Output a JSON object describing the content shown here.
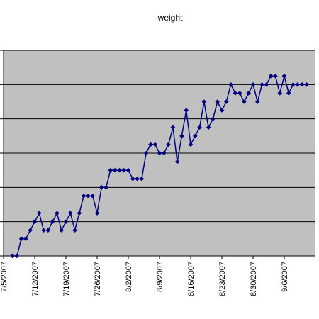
{
  "chart_data": {
    "type": "line",
    "title": "weight",
    "xlabel": "",
    "ylabel": "",
    "x_ticks": [
      "7/5/2007",
      "7/12/2007",
      "7/19/2007",
      "7/26/2007",
      "8/2/2007",
      "8/9/2007",
      "8/16/2007",
      "8/23/2007",
      "8/30/2007",
      "9/6/2007"
    ],
    "x_range": [
      "7/5/2007",
      "9/13/2007"
    ],
    "grid": true,
    "legend": "none",
    "y_gridline_count": 6,
    "colors": {
      "plot_bg": "#c0c0c0",
      "series": "#000080",
      "gridline": "#000000"
    },
    "series": [
      {
        "x": [
          "7/7/2007",
          "7/8/2007",
          "7/9/2007",
          "7/10/2007",
          "7/11/2007",
          "7/12/2007",
          "7/13/2007",
          "7/14/2007",
          "7/15/2007",
          "7/16/2007",
          "7/17/2007",
          "7/18/2007",
          "7/19/2007",
          "7/20/2007",
          "7/21/2007",
          "7/22/2007",
          "7/23/2007",
          "7/24/2007",
          "7/25/2007",
          "7/26/2007",
          "7/27/2007",
          "7/28/2007",
          "7/29/2007",
          "7/30/2007",
          "7/31/2007",
          "8/1/2007",
          "8/2/2007",
          "8/3/2007",
          "8/4/2007",
          "8/5/2007",
          "8/6/2007",
          "8/7/2007",
          "8/8/2007",
          "8/9/2007",
          "8/10/2007",
          "8/11/2007",
          "8/12/2007",
          "8/13/2007",
          "8/14/2007",
          "8/15/2007",
          "8/16/2007",
          "8/17/2007",
          "8/18/2007",
          "8/19/2007",
          "8/20/2007",
          "8/21/2007",
          "8/22/2007",
          "8/23/2007",
          "8/24/2007",
          "8/25/2007",
          "8/26/2007",
          "8/27/2007",
          "8/28/2007",
          "8/29/2007",
          "8/30/2007",
          "8/31/2007",
          "9/1/2007",
          "9/2/2007",
          "9/3/2007",
          "9/4/2007",
          "9/5/2007",
          "9/6/2007",
          "9/7/2007",
          "9/8/2007",
          "9/9/2007",
          "9/10/2007",
          "9/11/2007"
        ],
        "y": [
          0.0,
          0.0,
          0.5,
          0.5,
          0.75,
          1.0,
          1.25,
          0.75,
          0.75,
          1.0,
          1.25,
          0.75,
          1.0,
          1.25,
          0.75,
          1.25,
          1.75,
          1.75,
          1.75,
          1.25,
          2.0,
          2.0,
          2.5,
          2.5,
          2.5,
          2.5,
          2.5,
          2.25,
          2.25,
          2.25,
          3.0,
          3.25,
          3.25,
          3.0,
          3.0,
          3.25,
          3.75,
          2.75,
          3.5,
          4.25,
          3.25,
          3.5,
          3.75,
          4.5,
          3.75,
          4.0,
          4.5,
          4.25,
          4.5,
          5.0,
          4.75,
          4.75,
          4.5,
          4.75,
          5.0,
          4.5,
          5.0,
          5.0,
          5.25,
          5.25,
          4.75,
          5.25,
          4.75,
          5.0,
          5.0,
          5.0,
          5.0
        ]
      }
    ]
  }
}
